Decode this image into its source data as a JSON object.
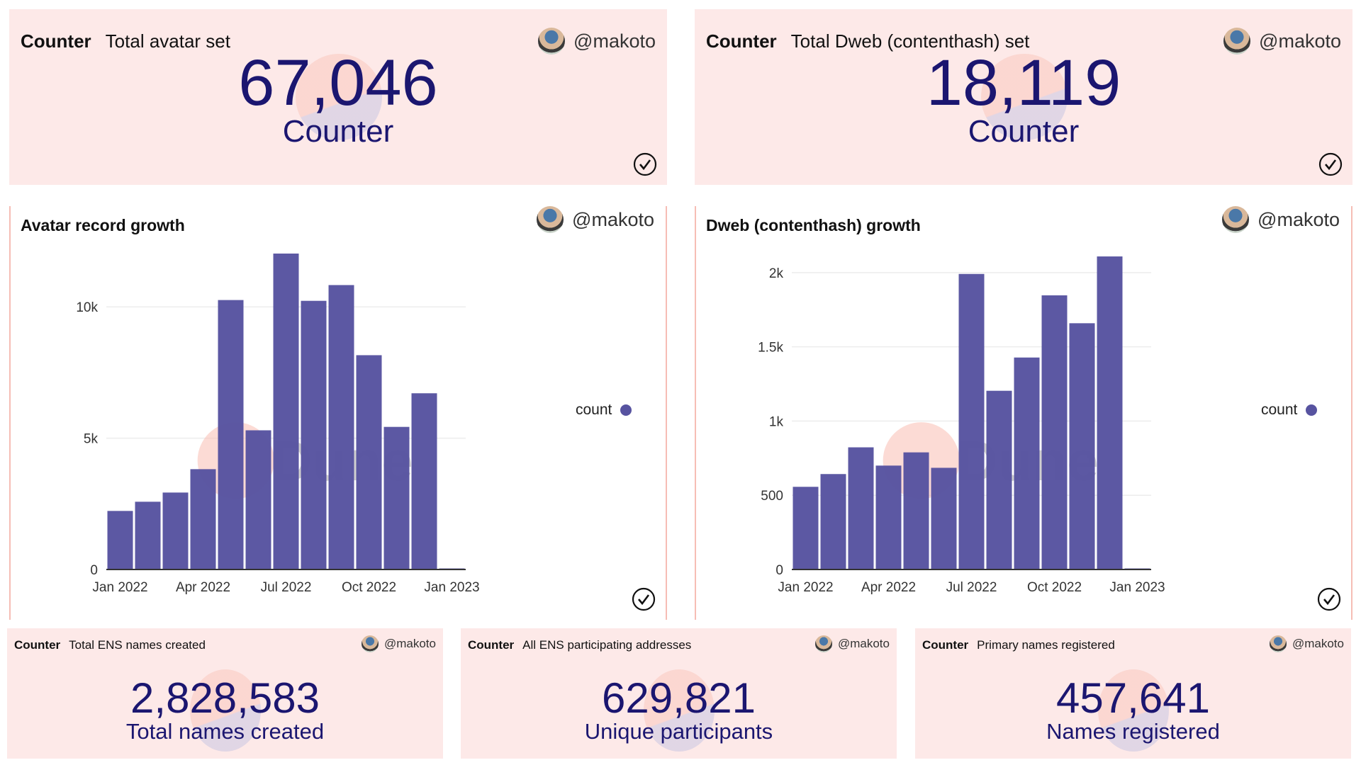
{
  "user": "@makoto",
  "colors": {
    "bar": "#5753a0",
    "number": "#1b1670",
    "card_bg": "#fde9e8",
    "border": "#f6bdb5"
  },
  "watermark": "Dune",
  "top_counters": [
    {
      "kind": "Counter",
      "title": "Total avatar set",
      "value": "67,046",
      "label": "Counter"
    },
    {
      "kind": "Counter",
      "title": "Total Dweb (contenthash) set",
      "value": "18,119",
      "label": "Counter"
    }
  ],
  "bottom_counters": [
    {
      "kind": "Counter",
      "title": "Total ENS names created",
      "value": "2,828,583",
      "label": "Total names created"
    },
    {
      "kind": "Counter",
      "title": "All ENS participating addresses",
      "value": "629,821",
      "label": "Unique participants"
    },
    {
      "kind": "Counter",
      "title": "Primary names registered",
      "value": "457,641",
      "label": "Names registered"
    }
  ],
  "chart_data": [
    {
      "type": "bar",
      "title": "Avatar record growth",
      "legend": "count",
      "legend_position": "right",
      "categories": [
        "Jan 2022",
        "Feb 2022",
        "Mar 2022",
        "Apr 2022",
        "May 2022",
        "Jun 2022",
        "Jul 2022",
        "Aug 2022",
        "Sep 2022",
        "Oct 2022",
        "Nov 2022",
        "Dec 2022",
        "Jan 2023"
      ],
      "values": [
        2230,
        2580,
        2930,
        3820,
        10260,
        5300,
        12030,
        10230,
        10830,
        8160,
        5430,
        6710,
        20
      ],
      "yticks": [
        {
          "v": 0,
          "label": "0"
        },
        {
          "v": 5000,
          "label": "5k"
        },
        {
          "v": 10000,
          "label": "10k"
        }
      ],
      "xticks": [
        {
          "i": 0,
          "label": "Jan 2022"
        },
        {
          "i": 3,
          "label": "Apr 2022"
        },
        {
          "i": 6,
          "label": "Jul 2022"
        },
        {
          "i": 9,
          "label": "Oct 2022"
        },
        {
          "i": 12,
          "label": "Jan 2023"
        }
      ],
      "ylim": [
        0,
        13000
      ],
      "grid": true
    },
    {
      "type": "bar",
      "title": "Dweb (contenthash) growth",
      "legend": "count",
      "legend_position": "right",
      "categories": [
        "Jan 2022",
        "Feb 2022",
        "Mar 2022",
        "Apr 2022",
        "May 2022",
        "Jun 2022",
        "Jul 2022",
        "Aug 2022",
        "Sep 2022",
        "Oct 2022",
        "Nov 2022",
        "Dec 2022",
        "Jan 2023"
      ],
      "values": [
        557,
        643,
        823,
        700,
        789,
        685,
        1991,
        1204,
        1428,
        1847,
        1659,
        2109,
        5
      ],
      "yticks": [
        {
          "v": 0,
          "label": "0"
        },
        {
          "v": 500,
          "label": "500"
        },
        {
          "v": 1000,
          "label": "1k"
        },
        {
          "v": 1500,
          "label": "1.5k"
        },
        {
          "v": 2000,
          "label": "2k"
        }
      ],
      "xticks": [
        {
          "i": 0,
          "label": "Jan 2022"
        },
        {
          "i": 3,
          "label": "Apr 2022"
        },
        {
          "i": 6,
          "label": "Jul 2022"
        },
        {
          "i": 9,
          "label": "Oct 2022"
        },
        {
          "i": 12,
          "label": "Jan 2023"
        }
      ],
      "ylim": [
        0,
        2300
      ],
      "grid": true
    }
  ]
}
